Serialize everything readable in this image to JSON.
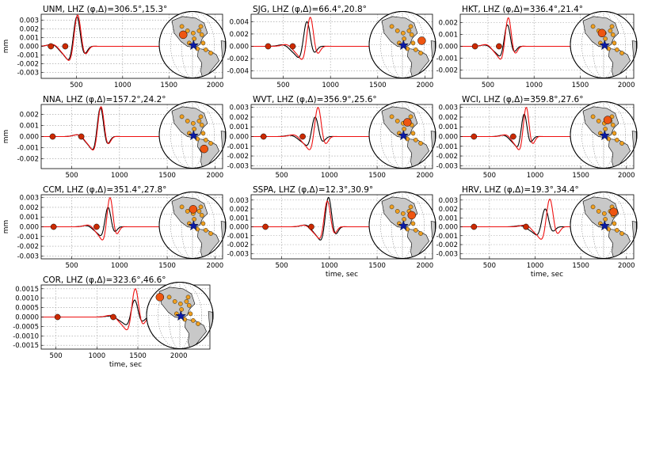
{
  "figure": {
    "xlabel": "time, sec",
    "ylabel": "mm"
  },
  "chart_data": [
    {
      "type": "line",
      "title": "UNM, LHZ",
      "params": "(φ,Δ)=306.5°,15.3°",
      "xlim": [
        120,
        2080
      ],
      "ylim": [
        -0.0037,
        0.0037
      ],
      "yticks": [
        "0.003",
        "0.002",
        "0.001",
        "0.000",
        "-0.001",
        "-0.002",
        "-0.003"
      ],
      "xticks": [
        "500",
        "1000",
        "1500",
        "2000"
      ],
      "show_xlabel": false,
      "show_ylabel": true,
      "t0": 505,
      "width": 95,
      "amp_black": 0.0034,
      "amp_red": 0.0036,
      "lag": 8,
      "markers": [
        {
          "t": 225,
          "color": "#cc2a00"
        },
        {
          "t": 380,
          "color": "#cc2a00"
        }
      ]
    },
    {
      "type": "line",
      "title": "SJG, LHZ",
      "params": "(φ,Δ)=66.4°,20.8°",
      "xlim": [
        160,
        2080
      ],
      "ylim": [
        -0.0052,
        0.0052
      ],
      "yticks": [
        "0.004",
        "0.002",
        "0.000",
        "-0.002",
        "-0.004"
      ],
      "xticks": [
        "500",
        "1000",
        "1500",
        "2000"
      ],
      "show_xlabel": false,
      "show_ylabel": false,
      "t0": 750,
      "width": 90,
      "amp_black": 0.004,
      "amp_red": 0.0047,
      "lag": 35,
      "markers": [
        {
          "t": 340,
          "color": "#cc2a00"
        },
        {
          "t": 600,
          "color": "#cc2a00"
        }
      ]
    },
    {
      "type": "line",
      "title": "HKT, LHZ",
      "params": "(φ,Δ)=336.4°,21.4°",
      "xlim": [
        200,
        2080
      ],
      "ylim": [
        -0.0027,
        0.0027
      ],
      "yticks": [
        "0.002",
        "0.001",
        "0.000",
        "-0.001",
        "-0.002"
      ],
      "xticks": [
        "500",
        "1000",
        "1500",
        "2000"
      ],
      "show_xlabel": false,
      "show_ylabel": false,
      "t0": 710,
      "width": 85,
      "amp_black": 0.0018,
      "amp_red": 0.0024,
      "lag": 10,
      "markers": [
        {
          "t": 360,
          "color": "#cc2a00"
        },
        {
          "t": 620,
          "color": "#cc2a00"
        }
      ]
    },
    {
      "type": "line",
      "title": "NNA, LHZ",
      "params": "(φ,Δ)=157.2°,24.2°",
      "xlim": [
        180,
        2080
      ],
      "ylim": [
        -0.0029,
        0.0029
      ],
      "yticks": [
        "0.002",
        "0.001",
        "0.000",
        "-0.001",
        "-0.002"
      ],
      "xticks": [
        "500",
        "1000",
        "1500",
        "2000"
      ],
      "show_xlabel": false,
      "show_ylabel": true,
      "t0": 800,
      "width": 85,
      "amp_black": 0.0026,
      "amp_red": 0.0027,
      "lag": 6,
      "markers": [
        {
          "t": 300,
          "color": "#cc2a00"
        },
        {
          "t": 600,
          "color": "#cc2a00"
        }
      ]
    },
    {
      "type": "line",
      "title": "WVT, LHZ",
      "params": "(φ,Δ)=356.9°,25.6°",
      "xlim": [
        180,
        2080
      ],
      "ylim": [
        -0.0033,
        0.0033
      ],
      "yticks": [
        "0.003",
        "0.002",
        "0.001",
        "0.000",
        "-0.001",
        "-0.002",
        "-0.003"
      ],
      "xticks": [
        "500",
        "1000",
        "1500",
        "2000"
      ],
      "show_xlabel": false,
      "show_ylabel": false,
      "t0": 850,
      "width": 90,
      "amp_black": 0.002,
      "amp_red": 0.003,
      "lag": 30,
      "markers": [
        {
          "t": 310,
          "color": "#cc2a00"
        },
        {
          "t": 720,
          "color": "#cc2a00"
        }
      ]
    },
    {
      "type": "line",
      "title": "WCI, LHZ",
      "params": "(φ,Δ)=359.8°,27.6°",
      "xlim": [
        180,
        2080
      ],
      "ylim": [
        -0.0033,
        0.0033
      ],
      "yticks": [
        "0.003",
        "0.002",
        "0.001",
        "0.000",
        "-0.001",
        "-0.002",
        "-0.003"
      ],
      "xticks": [
        "500",
        "1000",
        "1500",
        "2000"
      ],
      "show_xlabel": false,
      "show_ylabel": false,
      "t0": 880,
      "width": 80,
      "amp_black": 0.0023,
      "amp_red": 0.003,
      "lag": 22,
      "markers": [
        {
          "t": 330,
          "color": "#cc2a00"
        },
        {
          "t": 760,
          "color": "#cc2a00"
        }
      ]
    },
    {
      "type": "line",
      "title": "CCM, LHZ",
      "params": "(φ,Δ)=351.4°,27.8°",
      "xlim": [
        180,
        2080
      ],
      "ylim": [
        -0.0033,
        0.0033
      ],
      "yticks": [
        "0.003",
        "0.002",
        "0.001",
        "0.000",
        "-0.001",
        "-0.002",
        "-0.003"
      ],
      "xticks": [
        "500",
        "1000",
        "1500",
        "2000"
      ],
      "show_xlabel": false,
      "show_ylabel": true,
      "t0": 880,
      "width": 80,
      "amp_black": 0.002,
      "amp_red": 0.003,
      "lag": 20,
      "markers": [
        {
          "t": 310,
          "color": "#cc2a00"
        },
        {
          "t": 760,
          "color": "#cc2a00"
        }
      ]
    },
    {
      "type": "line",
      "title": "SSPA, LHZ",
      "params": "(φ,Δ)=12.3°,30.9°",
      "xlim": [
        180,
        2080
      ],
      "ylim": [
        -0.0036,
        0.0036
      ],
      "yticks": [
        "0.003",
        "0.002",
        "0.001",
        "0.000",
        "-0.001",
        "-0.002",
        "-0.003"
      ],
      "xticks": [
        "500",
        "1000",
        "1500",
        "2000"
      ],
      "show_xlabel": true,
      "show_ylabel": false,
      "t0": 990,
      "width": 85,
      "amp_black": 0.0033,
      "amp_red": 0.0029,
      "lag": -12,
      "markers": [
        {
          "t": 330,
          "color": "#cc2a00"
        },
        {
          "t": 810,
          "color": "#cc2a00"
        }
      ]
    },
    {
      "type": "line",
      "title": "HRV, LHZ",
      "params": "(φ,Δ)=19.3°,34.4°",
      "xlim": [
        180,
        2080
      ],
      "ylim": [
        -0.0036,
        0.0036
      ],
      "yticks": [
        "0.003",
        "0.002",
        "0.001",
        "0.000",
        "-0.001",
        "-0.002",
        "-0.003"
      ],
      "xticks": [
        "500",
        "1000",
        "1500",
        "2000"
      ],
      "show_xlabel": true,
      "show_ylabel": false,
      "t0": 1110,
      "width": 95,
      "amp_black": 0.002,
      "amp_red": 0.0031,
      "lag": 50,
      "markers": [
        {
          "t": 330,
          "color": "#cc2a00"
        },
        {
          "t": 900,
          "color": "#cc2a00"
        }
      ]
    },
    {
      "type": "line",
      "title": "COR, LHZ",
      "params": "(φ,Δ)=323.6°,46.6°",
      "xlim": [
        320,
        2380
      ],
      "ylim": [
        -0.0017,
        0.0017
      ],
      "yticks": [
        "0.0015",
        "0.0010",
        "0.0005",
        "0.0000",
        "-0.0005",
        "-0.0010",
        "-0.0015"
      ],
      "xticks": [
        "500",
        "1000",
        "1500",
        "2000"
      ],
      "show_xlabel": true,
      "show_ylabel": false,
      "t0": 1460,
      "width": 105,
      "amp_black": 0.0009,
      "amp_red": 0.0015,
      "lag": 8,
      "markers": [
        {
          "t": 520,
          "color": "#cc2a00"
        },
        {
          "t": 1200,
          "color": "#cc2a00"
        }
      ]
    }
  ],
  "colors": {
    "observed": "#000000",
    "synthetic": "#ee1010",
    "land": "#c8c8c8",
    "ocean": "#ffffff",
    "station": "#f0a020",
    "highlight_station": "#ee5511",
    "event_star": "#0a1aa8"
  }
}
